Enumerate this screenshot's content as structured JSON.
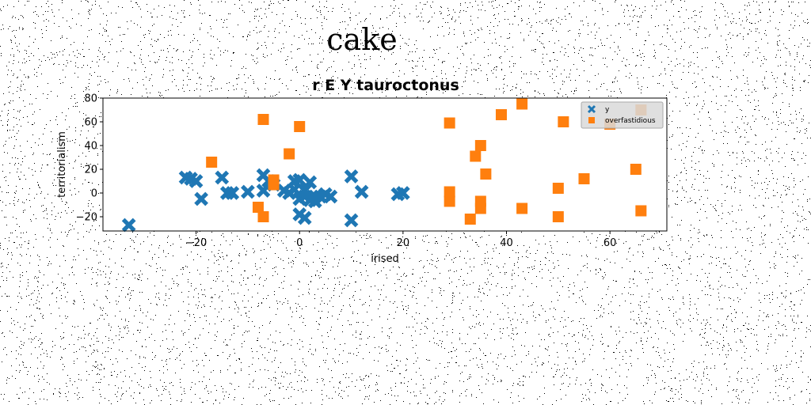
{
  "page_title": "cake",
  "chart_data": {
    "type": "scatter",
    "title": "r E Y tauroctonus",
    "xlabel": "irised",
    "ylabel": "territorialism",
    "xlim": [
      -38,
      71
    ],
    "ylim": [
      -32,
      80
    ],
    "xticks": [
      -20,
      0,
      20,
      40,
      60
    ],
    "xtick_labels": [
      "−20",
      "0",
      "20",
      "40",
      "60"
    ],
    "yticks": [
      -20,
      0,
      20,
      40,
      60,
      80
    ],
    "ytick_labels": [
      "−20",
      "0",
      "20",
      "40",
      "60",
      "80"
    ],
    "grid": false,
    "legend_position": "top-right",
    "series": [
      {
        "name": "y",
        "marker": "x",
        "color": "#1f77b4",
        "points": [
          [
            -33,
            -27
          ],
          [
            -22,
            13
          ],
          [
            -21,
            12
          ],
          [
            -20,
            10
          ],
          [
            -19,
            -5
          ],
          [
            -15,
            13
          ],
          [
            -14,
            0
          ],
          [
            -13,
            0
          ],
          [
            -10,
            1
          ],
          [
            -7,
            15
          ],
          [
            -7,
            2
          ],
          [
            -6,
            10
          ],
          [
            -5,
            7
          ],
          [
            -3,
            2
          ],
          [
            -2,
            0
          ],
          [
            -1,
            10
          ],
          [
            -1,
            3
          ],
          [
            0,
            11
          ],
          [
            0,
            -5
          ],
          [
            0,
            -18
          ],
          [
            1,
            2
          ],
          [
            1,
            -3
          ],
          [
            1,
            -21
          ],
          [
            2,
            -6
          ],
          [
            2,
            9
          ],
          [
            3,
            -3
          ],
          [
            3,
            -7
          ],
          [
            4,
            -3
          ],
          [
            5,
            -1
          ],
          [
            6,
            -3
          ],
          [
            10,
            14
          ],
          [
            10,
            -23
          ],
          [
            12,
            1
          ],
          [
            19,
            -1
          ],
          [
            20,
            0
          ]
        ]
      },
      {
        "name": "overfastidious",
        "marker": "s",
        "color": "#ff7f0e",
        "points": [
          [
            -17,
            26
          ],
          [
            -8,
            -12
          ],
          [
            -7,
            62
          ],
          [
            -7,
            -20
          ],
          [
            -5,
            11
          ],
          [
            -5,
            7
          ],
          [
            -2,
            33
          ],
          [
            0,
            56
          ],
          [
            29,
            59
          ],
          [
            29,
            1
          ],
          [
            29,
            -7
          ],
          [
            33,
            -22
          ],
          [
            34,
            31
          ],
          [
            35,
            40
          ],
          [
            35,
            -7
          ],
          [
            35,
            -13
          ],
          [
            36,
            16
          ],
          [
            39,
            66
          ],
          [
            43,
            75
          ],
          [
            43,
            -13
          ],
          [
            50,
            4
          ],
          [
            50,
            -20
          ],
          [
            51,
            60
          ],
          [
            55,
            12
          ],
          [
            60,
            58
          ],
          [
            65,
            20
          ],
          [
            66,
            70
          ],
          [
            66,
            -15
          ]
        ]
      }
    ]
  }
}
